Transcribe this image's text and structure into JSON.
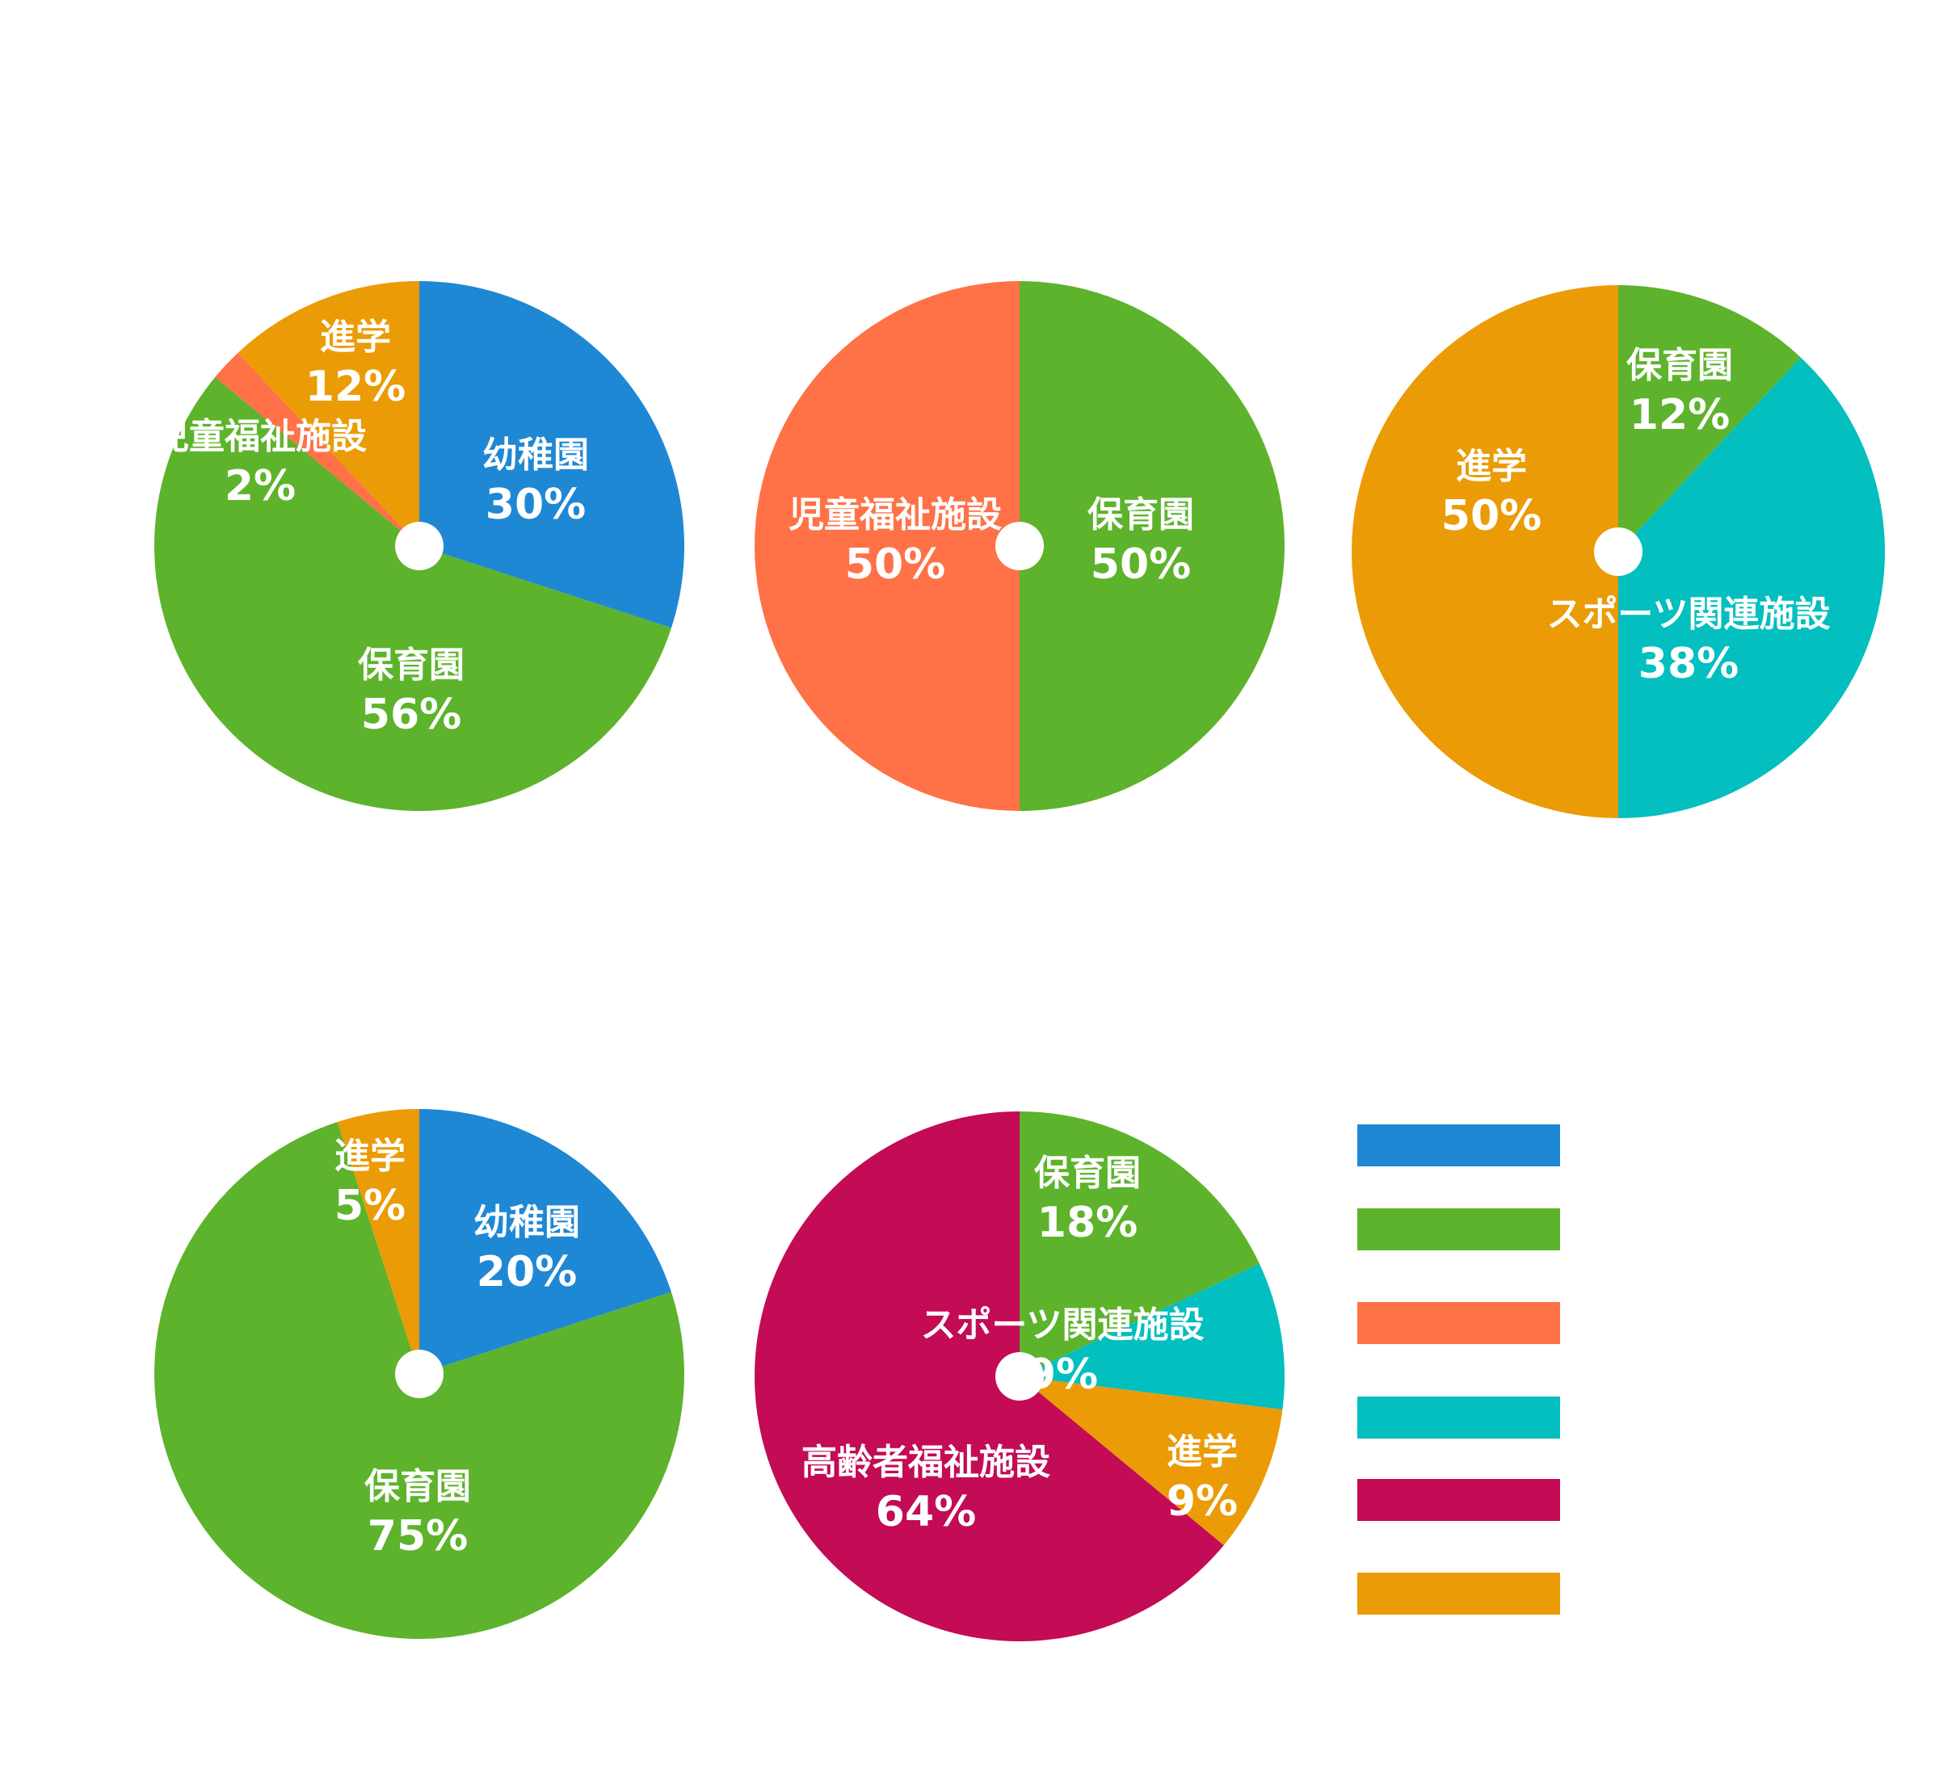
{
  "colors": {
    "kindergarten": "#1e88d5",
    "nursery": "#5db32b",
    "child_welfare": "#ff7146",
    "sports": "#03bfbf",
    "elderly_welfare": "#c40b55",
    "further_study": "#eb9b06",
    "center_hole": "#ffffff",
    "label_text": "#ffffff"
  },
  "chart_data": [
    {
      "type": "pie",
      "slices": [
        {
          "label": "幼稚園",
          "value": 30,
          "value_label": "30%",
          "color": "#1e88d5"
        },
        {
          "label": "保育園",
          "value": 56,
          "value_label": "56%",
          "color": "#5db32b"
        },
        {
          "label": "児童福祉施設",
          "value": 2,
          "value_label": "2%",
          "color": "#ff7146"
        },
        {
          "label": "進学",
          "value": 12,
          "value_label": "12%",
          "color": "#eb9b06"
        }
      ]
    },
    {
      "type": "pie",
      "slices": [
        {
          "label": "保育園",
          "value": 50,
          "value_label": "50%",
          "color": "#5db32b"
        },
        {
          "label": "児童福祉施設",
          "value": 50,
          "value_label": "50%",
          "color": "#ff7146"
        }
      ]
    },
    {
      "type": "pie",
      "slices": [
        {
          "label": "保育園",
          "value": 12,
          "value_label": "12%",
          "color": "#5db32b"
        },
        {
          "label": "スポーツ関連施設",
          "value": 38,
          "value_label": "38%",
          "color": "#03bfbf"
        },
        {
          "label": "進学",
          "value": 50,
          "value_label": "50%",
          "color": "#eb9b06"
        }
      ]
    },
    {
      "type": "pie",
      "slices": [
        {
          "label": "幼稚園",
          "value": 20,
          "value_label": "20%",
          "color": "#1e88d5"
        },
        {
          "label": "保育園",
          "value": 75,
          "value_label": "75%",
          "color": "#5db32b"
        },
        {
          "label": "進学",
          "value": 5,
          "value_label": "5%",
          "color": "#eb9b06"
        }
      ]
    },
    {
      "type": "pie",
      "slices": [
        {
          "label": "保育園",
          "value": 18,
          "value_label": "18%",
          "color": "#5db32b"
        },
        {
          "label": "スポーツ関連施設",
          "value": 9,
          "value_label": "9%",
          "color": "#03bfbf"
        },
        {
          "label": "進学",
          "value": 9,
          "value_label": "9%",
          "color": "#eb9b06"
        },
        {
          "label": "高齢者福祉施設",
          "value": 64,
          "value_label": "64%",
          "color": "#c40b55"
        }
      ]
    }
  ],
  "legend": {
    "items": [
      {
        "color": "#1e88d5"
      },
      {
        "color": "#5db32b"
      },
      {
        "color": "#ff7146"
      },
      {
        "color": "#03bfbf"
      },
      {
        "color": "#c40b55"
      },
      {
        "color": "#eb9b06"
      }
    ]
  }
}
